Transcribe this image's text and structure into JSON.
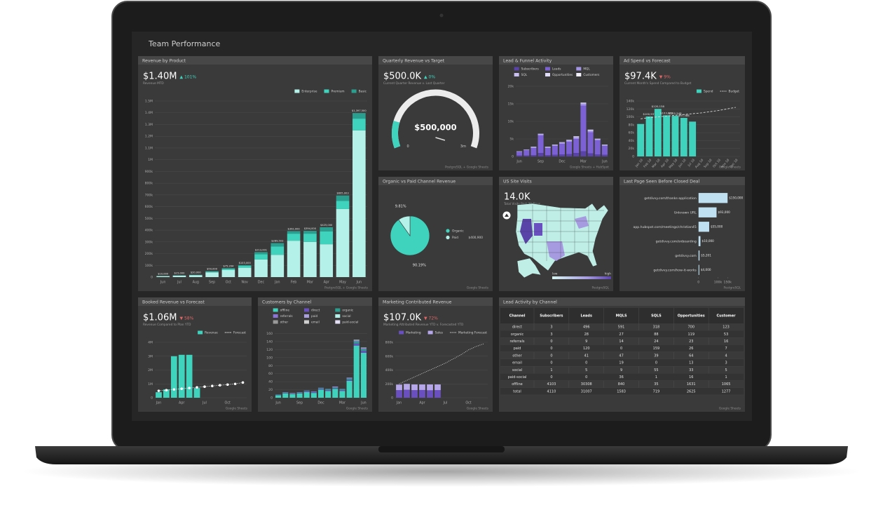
{
  "header": {
    "title": "Team Performance"
  },
  "chart_data": [
    {
      "type": "bar",
      "title": "Revenue by Product",
      "kpi": "$1.40M",
      "change": "▲ 101%",
      "subtitle": "Revenue MTD",
      "source": "PostgreSQL + Google Sheets",
      "categories": [
        "Jun",
        "Jul",
        "Aug",
        "Sep",
        "Oct",
        "Nov",
        "Dec",
        "Jan",
        "Feb",
        "Mar",
        "Apr",
        "May",
        "Jun"
      ],
      "series": [
        {
          "name": "Enterprise",
          "color": "#b4f1e8",
          "values": [
            8000,
            12000,
            16000,
            40000,
            60000,
            80000,
            150000,
            190000,
            310000,
            300000,
            280000,
            580000,
            1250000
          ]
        },
        {
          "name": "Premium",
          "color": "#3fd3bd",
          "values": [
            1500,
            2000,
            3000,
            7000,
            11000,
            16000,
            45000,
            70000,
            60000,
            70000,
            110000,
            70000,
            100000
          ]
        },
        {
          "name": "Basic",
          "color": "#2a9f90",
          "values": [
            500,
            1000,
            1000,
            3000,
            4204,
            7000,
            18001,
            29503,
            22000,
            24000,
            35000,
            45003,
            47500
          ]
        }
      ],
      "total_labels": [
        "$10,000",
        "$15,000",
        "$20,000",
        "$50,000",
        "$75,204",
        "$103,000",
        "$213,001",
        "$289,503",
        "$392,000",
        "$394,000",
        "$425,000",
        "$695,003",
        "$1,397,500"
      ],
      "ylim": [
        0,
        1500000
      ],
      "yticks": [
        0,
        {
          "value": 100000,
          "label": "100k"
        },
        {
          "value": 200000,
          "label": "200k"
        },
        {
          "value": 300000,
          "label": "300k"
        },
        {
          "value": 400000,
          "label": "400k"
        },
        {
          "value": 500000,
          "label": "500k"
        },
        {
          "value": 600000,
          "label": "600k"
        },
        {
          "value": 700000,
          "label": "700k"
        },
        {
          "value": 800000,
          "label": "800k"
        },
        {
          "value": 900000,
          "label": "900k"
        },
        {
          "value": 1000000,
          "label": "1M"
        },
        {
          "value": 1100000,
          "label": "1.1M"
        },
        {
          "value": 1200000,
          "label": "1.2M"
        },
        {
          "value": 1300000,
          "label": "1.3M"
        },
        {
          "value": 1400000,
          "label": "1.4M"
        },
        {
          "value": 1500000,
          "label": "1.5M"
        }
      ],
      "grid": true
    },
    {
      "type": "gauge",
      "title": "Quarterly Revenue vs Target",
      "kpi": "$500.0K",
      "change": "▲ 0%",
      "subtitle": "Current Quarter Revenue v. Last Quarter",
      "source": "PostgreSQL + Google Sheets",
      "value": 500000,
      "value_label": "$500,000",
      "color": "#3fd3bd",
      "ylim": [
        0,
        3000000
      ],
      "ticks": [
        0,
        {
          "value": 3000000,
          "label": "3m"
        }
      ]
    },
    {
      "type": "bar",
      "title": "Lead & Funnel Activity",
      "source": "Google Sheets + HubSpot",
      "categories": [
        "Jun",
        null,
        null,
        "Sep",
        null,
        null,
        "Dec",
        null,
        null,
        "Mar",
        null,
        null,
        "Jun"
      ],
      "series": [
        {
          "name": "Subscribers",
          "color": "#5a43a8",
          "values": [
            300,
            300,
            400,
            1000,
            400,
            500,
            600,
            700,
            1000,
            1500,
            900,
            600,
            500
          ]
        },
        {
          "name": "Leads",
          "color": "#7b61d3",
          "values": [
            1000,
            1500,
            2000,
            5000,
            2000,
            2500,
            3000,
            3500,
            4000,
            13000,
            6000,
            4000,
            2500
          ]
        },
        {
          "name": "MQL",
          "color": "#a595e6",
          "values": [
            100,
            100,
            200,
            300,
            200,
            200,
            300,
            300,
            400,
            500,
            400,
            300,
            200
          ]
        },
        {
          "name": "SQL",
          "color": "#c9bff3",
          "values": [
            50,
            50,
            100,
            100,
            100,
            100,
            100,
            150,
            200,
            200,
            200,
            100,
            100
          ]
        },
        {
          "name": "Opportunities",
          "color": "#e1dbfa",
          "values": [
            30,
            30,
            50,
            50,
            50,
            50,
            50,
            80,
            100,
            100,
            100,
            50,
            50
          ]
        },
        {
          "name": "Customers",
          "color": "#f4f1ff",
          "values": [
            10,
            10,
            20,
            20,
            20,
            20,
            20,
            30,
            40,
            40,
            40,
            20,
            20
          ]
        }
      ],
      "ylim": [
        0,
        20000
      ],
      "yticks": [
        0,
        {
          "value": 5000,
          "label": "5k"
        },
        {
          "value": 10000,
          "label": "10k"
        },
        {
          "value": 15000,
          "label": "15k"
        },
        {
          "value": 20000,
          "label": "20k"
        }
      ],
      "grid": true
    },
    {
      "type": "bar",
      "title": "Ad Spend vs Forecast",
      "kpi": "$97.4K",
      "change": "▼ 9%",
      "subtitle": "Current Month's Spend Compared to Budget",
      "source": "Google Sheets",
      "categories": [
        "Jan 18",
        "Feb 18",
        "Mar 18",
        "Apr 18",
        "May 18",
        "Jun 18",
        "Jul 18",
        "Aug 18",
        "Sep 18",
        "Oct 18",
        "Nov 18",
        "Dec 18"
      ],
      "series": [
        {
          "name": "Spend",
          "color": "#3fd3bd",
          "values": [
            82000,
            100937,
            120138,
            103873,
            102548,
            97386,
            88000,
            null,
            null,
            null,
            null,
            null
          ],
          "value_labels": [
            null,
            "$100,937",
            "$120,138",
            "$103,873",
            "$102,548",
            "$97,386",
            null,
            null,
            null,
            null,
            null,
            null
          ]
        },
        {
          "name": "Budget",
          "type": "line",
          "style": "dashed",
          "color": "#d8d8d8",
          "values": [
            95000,
            98000,
            100000,
            102000,
            104000,
            106000,
            108000,
            110000,
            113000,
            116000,
            120000,
            124000
          ]
        }
      ],
      "ylim": [
        0,
        140000
      ],
      "yticks": [
        0,
        {
          "value": 20000,
          "label": "20k"
        },
        {
          "value": 40000,
          "label": "40k"
        },
        {
          "value": 60000,
          "label": "60k"
        },
        {
          "value": 80000,
          "label": "80k"
        },
        {
          "value": 100000,
          "label": "100k"
        },
        {
          "value": 120000,
          "label": "120k"
        },
        {
          "value": 140000,
          "label": "140k"
        }
      ],
      "grid": true
    },
    {
      "type": "pie",
      "title": "Organic vs Paid Channel Revenue",
      "source": "Google Sheets",
      "categories": [
        "Organic",
        "Paid"
      ],
      "values": [
        90.19,
        9.81
      ],
      "value_labels": [
        "90.19%",
        "9.81%"
      ],
      "colors": [
        "#3fd3bd",
        "#b4f1e8"
      ],
      "annotation": "$400,900"
    },
    {
      "type": "map",
      "title": "US Site Visits",
      "kpi": "14.0K",
      "subtitle": "Total Visits Past 30 Days",
      "legend_low": "low",
      "legend_high": "high",
      "source": "PostgreSQL"
    },
    {
      "type": "barh",
      "title": "Last Page Seen Before Closed Deal",
      "source": "PostgreSQL",
      "color": "#bfe0f0",
      "categories": [
        "getdivvy.com/thanks-application",
        "Unknown URL",
        "app.hubspot.com/meetings/christian45",
        "getdivvy.com/onboarding",
        "getdivvy.com",
        "getdivvy.com/how-it-works"
      ],
      "values": [
        150000,
        93000,
        55000,
        10000,
        5201,
        4000
      ],
      "value_labels": [
        "$150,000",
        "$93,000",
        "$55,000",
        "$10,000",
        "$5,201",
        "$4,000"
      ],
      "xlim": [
        0,
        160000
      ],
      "xticks": [
        0,
        {
          "value": 100000,
          "label": "100k"
        },
        {
          "value": 150000,
          "label": "150k"
        }
      ]
    },
    {
      "type": "bar",
      "title": "Booked Revenue vs Forecast",
      "kpi": "$1.06M",
      "change": "▼ 58%",
      "subtitle": "Revenue Compared to Plan YTD",
      "source": "Google Sheets",
      "categories": [
        "Jan",
        null,
        null,
        "Apr",
        null,
        null,
        "Jul",
        null,
        null,
        "Oct",
        null,
        null
      ],
      "series": [
        {
          "name": "Revenue",
          "color": "#3fd3bd",
          "values": [
            400000,
            600000,
            3000000,
            3100000,
            3100000,
            700000,
            null,
            null,
            null,
            null,
            null,
            null
          ]
        },
        {
          "name": "Forecast",
          "type": "line",
          "style": "dotted",
          "markers": true,
          "color": "#ffffff",
          "values": [
            500000,
            550000,
            600000,
            650000,
            700000,
            750000,
            800000,
            850000,
            900000,
            950000,
            1000000,
            1100000
          ]
        }
      ],
      "ylim": [
        0,
        4000000
      ],
      "yticks": [
        0,
        {
          "value": 1000000,
          "label": "1M"
        },
        {
          "value": 2000000,
          "label": "2M"
        },
        {
          "value": 3000000,
          "label": "3M"
        },
        {
          "value": 4000000,
          "label": "4M"
        }
      ],
      "grid": true
    },
    {
      "type": "bar",
      "title": "Customers by Channel",
      "source": "Google Sheets",
      "categories": [
        "Jun",
        null,
        null,
        "Sep",
        null,
        null,
        "Dec",
        null,
        null,
        "Mar",
        null,
        null,
        "Jun"
      ],
      "series": [
        {
          "name": "offline",
          "color": "#3fd3bd",
          "values": [
            6,
            11,
            9,
            11,
            14,
            12,
            20,
            17,
            22,
            17,
            42,
            130,
            112
          ]
        },
        {
          "name": "direct",
          "color": "#6a4fc0",
          "values": [
            1,
            1,
            1,
            1,
            2,
            2,
            2,
            2,
            2,
            2,
            3,
            5,
            5
          ]
        },
        {
          "name": "organic",
          "color": "#2a9f90",
          "values": [
            1,
            1,
            1,
            1,
            1,
            1,
            2,
            2,
            2,
            2,
            3,
            5,
            4
          ]
        },
        {
          "name": "referrals",
          "color": "#8a74d6",
          "values": [
            0,
            1,
            0,
            1,
            1,
            1,
            1,
            1,
            1,
            1,
            1,
            2,
            2
          ]
        },
        {
          "name": "paid",
          "color": "#a99fdc",
          "values": [
            0,
            0,
            1,
            0,
            0,
            0,
            0,
            0,
            1,
            0,
            1,
            1,
            1
          ]
        },
        {
          "name": "social",
          "color": "#b4f1e8",
          "values": [
            0,
            0,
            0,
            0,
            0,
            0,
            0,
            0,
            0,
            0,
            0,
            1,
            1
          ]
        },
        {
          "name": "other",
          "color": "#9a9a9a",
          "values": [
            0,
            0,
            0,
            0,
            0,
            0,
            0,
            0,
            0,
            0,
            0,
            1,
            0
          ]
        },
        {
          "name": "email",
          "color": "#cfcfcf",
          "values": [
            0,
            0,
            0,
            0,
            0,
            0,
            0,
            0,
            0,
            0,
            0,
            0,
            0
          ]
        },
        {
          "name": "paid-social",
          "color": "#e6e0f7",
          "values": [
            0,
            0,
            0,
            0,
            0,
            0,
            0,
            0,
            0,
            0,
            0,
            0,
            0
          ]
        }
      ],
      "ylim": [
        0,
        160
      ],
      "yticks": [
        0,
        20,
        40,
        60,
        80,
        100,
        120,
        140,
        160
      ],
      "grid": true
    },
    {
      "type": "bar",
      "title": "Marketing Contributed Revenue",
      "kpi": "$107.0K",
      "change": "▼ 72%",
      "subtitle": "Marketing Attributed Revenue YTD v. Forecasted YTD",
      "source": "Google Sheets",
      "categories": [
        "Jan",
        null,
        null,
        "Apr",
        null,
        null,
        "Jul",
        null,
        null,
        "Oct",
        null,
        null
      ],
      "series": [
        {
          "name": "Marketing",
          "color": "#6a4fc0",
          "values": [
            110000,
            115000,
            110000,
            112000,
            108000,
            110000,
            null,
            null,
            null,
            null,
            null,
            null
          ]
        },
        {
          "name": "Sales",
          "color": "#b6a6ea",
          "values": [
            80000,
            85000,
            82000,
            80000,
            84000,
            82000,
            null,
            null,
            null,
            null,
            null,
            null
          ]
        },
        {
          "name": "Marketing Forecast",
          "type": "line",
          "style": "dotted",
          "color": "#d8d8d8",
          "values": [
            200000,
            250000,
            300000,
            350000,
            400000,
            450000,
            500000,
            560000,
            620000,
            690000,
            740000,
            780000
          ]
        }
      ],
      "ylim": [
        0,
        800000
      ],
      "yticks": [
        0,
        {
          "value": 200000,
          "label": "200k"
        },
        {
          "value": 400000,
          "label": "400k"
        },
        {
          "value": 600000,
          "label": "600k"
        },
        {
          "value": 800000,
          "label": "800k"
        }
      ],
      "grid": true
    }
  ],
  "table": {
    "title": "Lead Activity by Channel",
    "source": "Google Sheets",
    "headers": [
      "Channel",
      "Subscribers",
      "Leads",
      "MQLS",
      "SQLS",
      "Opportunities",
      "Customer"
    ],
    "rows": [
      [
        "direct",
        3,
        496,
        591,
        318,
        700,
        123
      ],
      [
        "organic",
        3,
        28,
        27,
        88,
        119,
        53
      ],
      [
        "referrals",
        0,
        9,
        14,
        24,
        23,
        16
      ],
      [
        "paid",
        0,
        120,
        0,
        159,
        26,
        7
      ],
      [
        "other",
        0,
        41,
        47,
        39,
        64,
        4
      ],
      [
        "email",
        0,
        0,
        19,
        0,
        13,
        3
      ],
      [
        "social",
        1,
        5,
        9,
        55,
        33,
        5
      ],
      [
        "paid-social",
        0,
        0,
        36,
        1,
        16,
        1
      ],
      [
        "offline",
        4103,
        30308,
        840,
        35,
        1631,
        1065
      ],
      [
        "total",
        4110,
        31007,
        1583,
        719,
        2625,
        1277
      ]
    ]
  }
}
